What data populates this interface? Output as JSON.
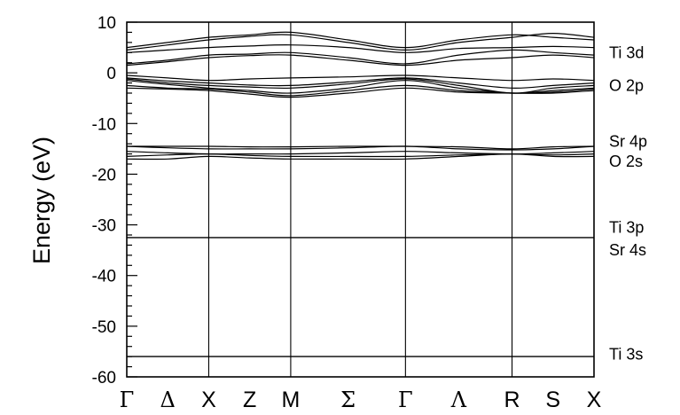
{
  "chart_data": {
    "type": "line",
    "title": "",
    "xlabel": "",
    "ylabel": "Energy (eV)",
    "ylim": [
      -60,
      10
    ],
    "yticks": [
      10,
      0,
      -10,
      -20,
      -30,
      -40,
      -50,
      -60
    ],
    "yticks_text": [
      "10",
      "0",
      "-10",
      "-20",
      "-30",
      "-40",
      "-50",
      "-60"
    ],
    "k_points": [
      {
        "label": "Γ",
        "pos": 0,
        "greek": true,
        "line": false
      },
      {
        "label": "Δ",
        "pos": 0.5,
        "greek": true,
        "line": false
      },
      {
        "label": "X",
        "pos": 1,
        "greek": false,
        "line": true
      },
      {
        "label": "Z",
        "pos": 1.5,
        "greek": false,
        "line": false
      },
      {
        "label": "M",
        "pos": 2,
        "greek": false,
        "line": true
      },
      {
        "label": "Σ",
        "pos": 2.7,
        "greek": true,
        "line": false
      },
      {
        "label": "Γ",
        "pos": 3.4,
        "greek": true,
        "line": true
      },
      {
        "label": "Λ",
        "pos": 4.05,
        "greek": true,
        "line": false
      },
      {
        "label": "R",
        "pos": 4.7,
        "greek": false,
        "line": true
      },
      {
        "label": "S",
        "pos": 5.2,
        "greek": false,
        "line": false
      },
      {
        "label": "X",
        "pos": 5.7,
        "greek": false,
        "line": false
      }
    ],
    "band_labels": [
      {
        "text": "Ti 3d",
        "energy": 4.0
      },
      {
        "text": "O 2p",
        "energy": -2.5
      },
      {
        "text": "Sr 4p",
        "energy": -13.5
      },
      {
        "text": "O 2s",
        "energy": -17.5
      },
      {
        "text": "Ti 3p",
        "energy": -30.5
      },
      {
        "text": "Sr 4s",
        "energy": -35.0
      },
      {
        "text": "Ti 3s",
        "energy": -55.5
      }
    ],
    "bands_x": [
      0,
      0.5,
      1,
      1.5,
      2,
      2.7,
      3.4,
      4.05,
      4.7,
      5.2,
      5.7
    ],
    "bands": [
      {
        "energies": [
          5.0,
          6.0,
          7.0,
          7.5,
          8.0,
          6.5,
          5.0,
          6.5,
          7.5,
          7.0,
          6.5
        ]
      },
      {
        "energies": [
          4.5,
          5.5,
          6.5,
          7.2,
          7.5,
          6.0,
          4.5,
          6.0,
          7.0,
          7.8,
          7.0
        ]
      },
      {
        "energies": [
          4.0,
          4.5,
          5.0,
          5.3,
          5.5,
          5.0,
          4.0,
          4.8,
          5.0,
          5.2,
          5.0
        ]
      },
      {
        "energies": [
          1.8,
          2.5,
          3.5,
          3.7,
          4.0,
          3.0,
          1.8,
          3.5,
          4.5,
          4.0,
          3.5
        ]
      },
      {
        "energies": [
          1.5,
          2.2,
          3.0,
          3.4,
          3.5,
          2.5,
          1.5,
          2.5,
          3.0,
          3.5,
          3.0
        ]
      },
      {
        "energies": [
          -0.5,
          -1.0,
          -1.5,
          -1.2,
          -1.0,
          -0.8,
          -0.5,
          -1.0,
          -1.5,
          -1.2,
          -1.5
        ]
      },
      {
        "energies": [
          -1.0,
          -1.6,
          -2.0,
          -2.4,
          -2.5,
          -1.8,
          -1.0,
          -2.0,
          -3.0,
          -2.5,
          -2.0
        ]
      },
      {
        "energies": [
          -1.2,
          -2.0,
          -2.5,
          -2.8,
          -3.0,
          -2.2,
          -1.2,
          -2.5,
          -4.0,
          -3.0,
          -2.5
        ]
      },
      {
        "energies": [
          -1.5,
          -2.3,
          -3.0,
          -3.5,
          -4.0,
          -3.0,
          -1.5,
          -3.0,
          -4.0,
          -3.5,
          -3.0
        ]
      },
      {
        "energies": [
          -2.5,
          -3.0,
          -3.2,
          -3.8,
          -4.5,
          -3.5,
          -2.5,
          -3.5,
          -4.0,
          -3.8,
          -3.2
        ]
      },
      {
        "energies": [
          -3.0,
          -3.2,
          -3.5,
          -4.2,
          -4.8,
          -4.0,
          -3.0,
          -3.8,
          -4.0,
          -4.0,
          -3.5
        ]
      },
      {
        "energies": [
          -14.5,
          -14.8,
          -15.0,
          -15.0,
          -15.0,
          -14.8,
          -14.5,
          -15.0,
          -15.2,
          -15.0,
          -14.5
        ]
      },
      {
        "energies": [
          -14.5,
          -14.5,
          -14.5,
          -14.6,
          -14.6,
          -14.5,
          -14.5,
          -14.6,
          -15.0,
          -14.6,
          -14.5
        ]
      },
      {
        "energies": [
          -15.5,
          -15.8,
          -16.0,
          -16.0,
          -16.0,
          -15.8,
          -15.5,
          -15.8,
          -16.0,
          -15.8,
          -15.5
        ]
      },
      {
        "energies": [
          -16.5,
          -16.2,
          -16.0,
          -16.3,
          -16.5,
          -16.5,
          -16.5,
          -16.2,
          -16.0,
          -16.2,
          -16.0
        ]
      },
      {
        "energies": [
          -17.0,
          -17.0,
          -16.5,
          -16.8,
          -17.0,
          -17.0,
          -17.0,
          -16.5,
          -16.0,
          -16.5,
          -16.5
        ]
      },
      {
        "energies": [
          -32.5,
          -32.5,
          -32.5,
          -32.5,
          -32.5,
          -32.5,
          -32.5,
          -32.5,
          -32.5,
          -32.5,
          -32.5
        ]
      },
      {
        "energies": [
          -56.0,
          -56.0,
          -56.0,
          -56.0,
          -56.0,
          -56.0,
          -56.0,
          -56.0,
          -56.0,
          -56.0,
          -56.0
        ]
      }
    ]
  }
}
